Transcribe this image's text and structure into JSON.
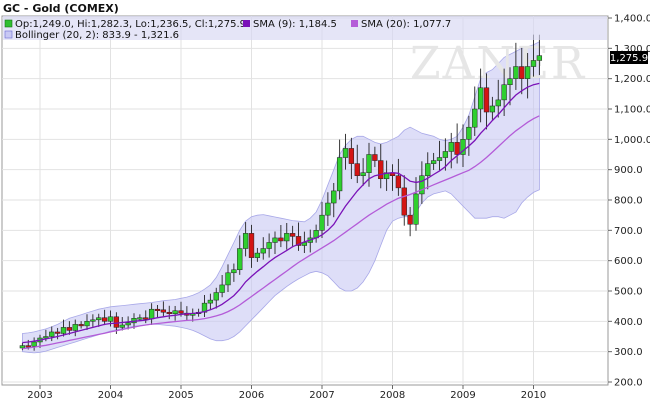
{
  "chart_data": {
    "type": "candlestick",
    "title": "GC - Gold (COMEX)",
    "watermark": "ZANER",
    "legend": {
      "ohlc": "Op:1,249.0, Hi:1,282.3, Lo:1,236.5, Cl:1,275.9",
      "sma9": "SMA (9): 1,184.5",
      "sma20": "SMA (20): 1,077.7",
      "bollinger": "Bollinger (20, 2): 833.9 - 1,321.6"
    },
    "last_price_label": "1,275.9",
    "y_axis": {
      "ticks": [
        "1,400.0",
        "1,300.0",
        "1,200.0",
        "1,100.0",
        "1,000.0",
        "900.0",
        "800.0",
        "700.0",
        "600.0",
        "500.0",
        "400.0",
        "300.0",
        "200.0"
      ],
      "min": 200,
      "max": 1400
    },
    "x_axis": {
      "labels": [
        "2003",
        "2004",
        "2005",
        "2006",
        "2007",
        "2008",
        "2009",
        "2010"
      ]
    },
    "start_year": 2002.75,
    "closes": [
      320,
      318,
      332,
      345,
      350,
      365,
      360,
      380,
      370,
      390,
      385,
      400,
      405,
      412,
      400,
      415,
      380,
      388,
      395,
      410,
      412,
      408,
      440,
      438,
      430,
      425,
      435,
      427,
      420,
      425,
      430,
      460,
      470,
      495,
      520,
      560,
      570,
      640,
      690,
      610,
      625,
      640,
      660,
      675,
      665,
      690,
      680,
      650,
      660,
      675,
      700,
      750,
      790,
      830,
      940,
      970,
      920,
      880,
      890,
      950,
      930,
      870,
      890,
      880,
      840,
      750,
      720,
      820,
      880,
      920,
      930,
      940,
      960,
      990,
      950,
      1000,
      1040,
      1100,
      1170,
      1090,
      1110,
      1130,
      1180,
      1200,
      1240,
      1200,
      1240,
      1260,
      1275.9
    ],
    "sma9": [
      330,
      332,
      335,
      338,
      342,
      346,
      350,
      355,
      360,
      365,
      370,
      375,
      380,
      385,
      390,
      393,
      394,
      396,
      398,
      400,
      402,
      404,
      408,
      412,
      415,
      418,
      420,
      423,
      425,
      426,
      428,
      432,
      438,
      446,
      456,
      470,
      485,
      505,
      530,
      548,
      565,
      580,
      596,
      610,
      622,
      634,
      646,
      654,
      662,
      668,
      675,
      685,
      700,
      720,
      750,
      780,
      805,
      830,
      850,
      870,
      880,
      884,
      888,
      890,
      888,
      876,
      862,
      858,
      862,
      872,
      884,
      896,
      910,
      930,
      946,
      962,
      978,
      996,
      1020,
      1040,
      1062,
      1082,
      1104,
      1126,
      1146,
      1160,
      1172,
      1180,
      1184.5
    ],
    "sma20": [
      310,
      312,
      315,
      318,
      321,
      325,
      329,
      333,
      337,
      341,
      345,
      349,
      353,
      357,
      361,
      365,
      369,
      373,
      377,
      381,
      385,
      388,
      391,
      393,
      395,
      397,
      399,
      401,
      403,
      404,
      406,
      409,
      413,
      418,
      424,
      432,
      442,
      454,
      468,
      482,
      496,
      510,
      524,
      538,
      552,
      566,
      580,
      594,
      606,
      618,
      630,
      642,
      654,
      666,
      680,
      694,
      708,
      722,
      736,
      750,
      762,
      774,
      786,
      796,
      806,
      812,
      818,
      826,
      834,
      842,
      850,
      858,
      866,
      874,
      882,
      890,
      898,
      910,
      924,
      940,
      958,
      976,
      994,
      1012,
      1028,
      1042,
      1056,
      1068,
      1077.7
    ],
    "bb_upper": [
      360,
      362,
      365,
      370,
      375,
      382,
      390,
      400,
      410,
      416,
      422,
      428,
      434,
      440,
      444,
      448,
      450,
      452,
      454,
      456,
      458,
      460,
      462,
      465,
      468,
      470,
      472,
      476,
      480,
      486,
      494,
      506,
      520,
      545,
      580,
      620,
      660,
      700,
      730,
      745,
      750,
      752,
      748,
      744,
      740,
      736,
      732,
      730,
      728,
      740,
      760,
      800,
      850,
      900,
      950,
      980,
      1000,
      1010,
      1010,
      1000,
      990,
      985,
      990,
      1000,
      1010,
      1030,
      1040,
      1030,
      1020,
      1015,
      1010,
      1000,
      995,
      1000,
      1010,
      1040,
      1080,
      1140,
      1200,
      1220,
      1230,
      1250,
      1270,
      1280,
      1290,
      1300,
      1305,
      1312,
      1321.6
    ],
    "bb_lower": [
      300,
      298,
      296,
      298,
      302,
      308,
      314,
      320,
      326,
      332,
      338,
      344,
      350,
      356,
      362,
      368,
      372,
      376,
      380,
      384,
      386,
      388,
      390,
      390,
      388,
      386,
      384,
      380,
      376,
      370,
      362,
      352,
      342,
      336,
      336,
      340,
      350,
      365,
      385,
      405,
      425,
      445,
      465,
      485,
      500,
      515,
      528,
      540,
      550,
      560,
      565,
      560,
      550,
      530,
      510,
      500,
      500,
      510,
      530,
      560,
      600,
      650,
      700,
      730,
      740,
      745,
      745,
      760,
      790,
      810,
      820,
      825,
      830,
      820,
      800,
      780,
      760,
      740,
      740,
      740,
      745,
      745,
      740,
      750,
      760,
      790,
      810,
      825,
      833.9
    ]
  }
}
